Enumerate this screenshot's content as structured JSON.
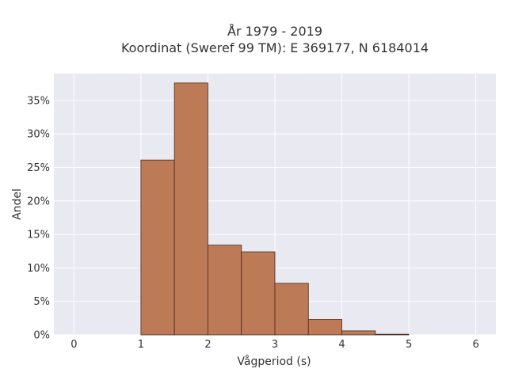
{
  "chart_data": {
    "type": "bar",
    "title_line1": "År 1979 - 2019",
    "title_line2": "Koordinat (Sweref 99 TM): E 369177, N 6184014",
    "xlabel": "Vågperiod (s)",
    "ylabel": "Andel",
    "xlim": [
      -0.3,
      6.3
    ],
    "ylim": [
      0,
      0.39
    ],
    "xticks": [
      0,
      1,
      2,
      3,
      4,
      5,
      6
    ],
    "xtick_labels": [
      "0",
      "1",
      "2",
      "3",
      "4",
      "5",
      "6"
    ],
    "yticks": [
      0,
      0.05,
      0.1,
      0.15,
      0.2,
      0.25,
      0.3,
      0.35
    ],
    "ytick_labels": [
      "0%",
      "5%",
      "10%",
      "15%",
      "20%",
      "25%",
      "30%",
      "35%"
    ],
    "bins": [
      {
        "x0": 1.0,
        "x1": 1.5,
        "value": 0.261
      },
      {
        "x0": 1.5,
        "x1": 2.0,
        "value": 0.376
      },
      {
        "x0": 2.0,
        "x1": 2.5,
        "value": 0.134
      },
      {
        "x0": 2.5,
        "x1": 3.0,
        "value": 0.124
      },
      {
        "x0": 3.0,
        "x1": 3.5,
        "value": 0.077
      },
      {
        "x0": 3.5,
        "x1": 4.0,
        "value": 0.023
      },
      {
        "x0": 4.0,
        "x1": 4.5,
        "value": 0.006
      },
      {
        "x0": 4.5,
        "x1": 5.0,
        "value": 0.001
      }
    ],
    "grid": true,
    "colors": {
      "bar_fill": "#bc7a56",
      "bar_stroke": "#4a2a18",
      "plot_bg": "#e9e9f1",
      "grid": "#ffffff"
    }
  }
}
